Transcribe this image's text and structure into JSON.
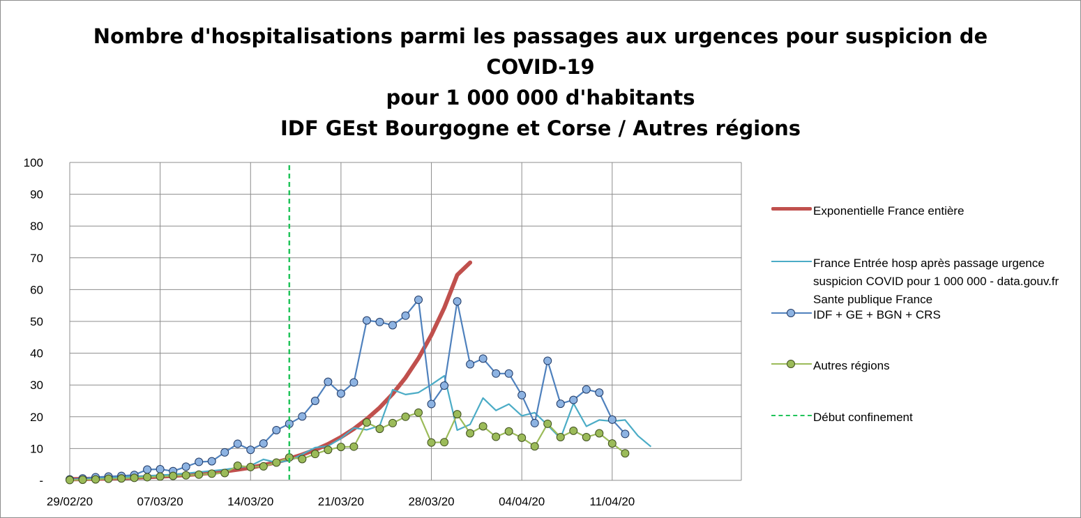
{
  "title_lines": [
    "Nombre d'hospitalisations parmi les passages aux urgences pour suspicion de",
    "COVID-19",
    "pour 1 000 000 d'habitants",
    "IDF GEst Bourgogne et Corse /  Autres régions"
  ],
  "chart_data": {
    "type": "line",
    "title": "Nombre d'hospitalisations parmi les passages aux urgences pour suspicion de COVID-19 pour 1 000 000 d'habitants IDF GEst Bourgogne et Corse /  Autres régions",
    "x_tick_labels": [
      "29/02/20",
      "07/03/20",
      "14/03/20",
      "21/03/20",
      "28/03/20",
      "04/04/20",
      "11/04/20"
    ],
    "x_start": "29/02/20",
    "x_end": "21/04/20",
    "y_tick_labels": [
      "-",
      "10",
      "20",
      "30",
      "40",
      "50",
      "60",
      "70",
      "80",
      "90",
      "100"
    ],
    "ylim": [
      0,
      100
    ],
    "grid": true,
    "legend_position": "right",
    "series": [
      {
        "name": "Exponentielle France entière",
        "color": "#c0504d",
        "style": "thick-line",
        "x_start": "29/02/20",
        "values": [
          0.35,
          0.42,
          0.5,
          0.6,
          0.7,
          0.85,
          1.0,
          1.2,
          1.4,
          1.7,
          2.0,
          2.4,
          2.8,
          3.4,
          4.0,
          4.8,
          5.7,
          6.8,
          8.1,
          9.6,
          11.4,
          13.6,
          16.2,
          19.3,
          22.9,
          27.2,
          32.3,
          38.4,
          45.7,
          54.3,
          64.6,
          68.5
        ]
      },
      {
        "name": "France Entrée hosp après passage urgence suspicion COVID pour 1 000 000 - data.gouv.fr Sante publique France",
        "color": "#4bacc6",
        "style": "line",
        "x_start": "29/02/20",
        "values": [
          0.2,
          0.4,
          0.6,
          0.8,
          1.0,
          1.2,
          1.4,
          1.6,
          1.9,
          2.2,
          2.6,
          3.0,
          3.4,
          4.0,
          4.6,
          6.6,
          5.6,
          6.2,
          8.2,
          10.3,
          10.8,
          13.2,
          16.5,
          15.9,
          17.2,
          28.5,
          27.0,
          27.6,
          30.1,
          32.9,
          15.8,
          17.6,
          25.9,
          22.0,
          24.0,
          20.3,
          21.3,
          17.4,
          13.2,
          24.2,
          17.0,
          19.0,
          18.6,
          19.0,
          14.0,
          10.6
        ]
      },
      {
        "name": "IDF + GE + BGN + CRS",
        "color": "#4f81bd",
        "marker_fill": "#8db3e2",
        "style": "line-markers",
        "x_start": "29/02/20",
        "values": [
          0.3,
          0.6,
          1.0,
          1.2,
          1.4,
          1.7,
          3.4,
          3.5,
          2.9,
          4.3,
          5.8,
          6.0,
          8.8,
          11.5,
          9.6,
          11.6,
          15.8,
          17.8,
          20.1,
          25.0,
          31.0,
          27.3,
          30.8,
          50.3,
          49.8,
          48.8,
          51.8,
          56.8,
          24.0,
          29.8,
          56.3,
          36.5,
          38.3,
          33.6,
          33.6,
          26.8,
          18.0,
          37.6,
          24.1,
          25.3,
          28.6,
          27.6,
          19.1,
          14.6
        ]
      },
      {
        "name": "Autres régions",
        "color": "#9bbb59",
        "marker_fill": "#9bbb59",
        "style": "line-markers",
        "x_start": "29/02/20",
        "values": [
          0.1,
          0.2,
          0.3,
          0.5,
          0.6,
          0.8,
          1.0,
          1.2,
          1.4,
          1.6,
          1.8,
          2.1,
          2.3,
          4.6,
          4.2,
          4.4,
          5.6,
          7.2,
          6.7,
          8.3,
          9.6,
          10.5,
          10.6,
          18.2,
          16.2,
          18.0,
          20.0,
          21.3,
          11.9,
          12.0,
          20.8,
          14.8,
          17.0,
          13.7,
          15.4,
          13.4,
          10.7,
          17.8,
          13.6,
          15.6,
          13.6,
          14.8,
          11.6,
          8.5
        ]
      },
      {
        "name": "Début confinement",
        "color": "#21c45a",
        "style": "dashed-vertical",
        "x_value": "17/03/20"
      }
    ]
  }
}
